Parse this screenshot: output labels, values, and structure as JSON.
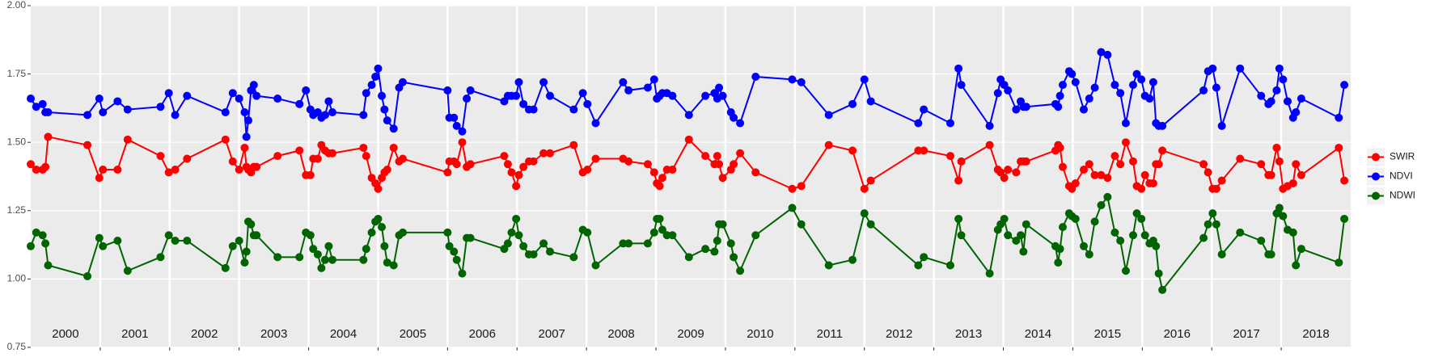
{
  "chart_data": {
    "type": "line",
    "x": [
      2000.0,
      2000.079,
      2000.171,
      2000.211,
      2000.25,
      2000.816,
      2000.987,
      2001.039,
      2001.25,
      2001.395,
      2001.868,
      2001.987,
      2002.079,
      2002.25,
      2002.803,
      2002.908,
      2003.0,
      2003.079,
      2003.105,
      2003.132,
      2003.171,
      2003.211,
      2003.25,
      2003.553,
      2003.868,
      2003.961,
      2004.026,
      2004.066,
      2004.132,
      2004.184,
      2004.237,
      2004.289,
      2004.342,
      2004.789,
      2004.829,
      2004.908,
      2004.961,
      2005.0,
      2005.053,
      2005.092,
      2005.132,
      2005.224,
      2005.303,
      2005.355,
      2006.0,
      2006.026,
      2006.092,
      2006.132,
      2006.211,
      2006.276,
      2006.329,
      2006.816,
      2006.868,
      2006.921,
      2006.987,
      2007.026,
      2007.092,
      2007.171,
      2007.237,
      2007.382,
      2007.474,
      2007.816,
      2007.947,
      2008.013,
      2008.132,
      2008.526,
      2008.605,
      2008.882,
      2008.974,
      2009.013,
      2009.053,
      2009.092,
      2009.158,
      2009.237,
      2009.474,
      2009.711,
      2009.842,
      2009.882,
      2009.908,
      2009.961,
      2010.079,
      2010.118,
      2010.211,
      2010.434,
      2010.961,
      2011.092,
      2011.487,
      2011.829,
      2012.0,
      2012.092,
      2012.776,
      2012.855,
      2013.237,
      2013.355,
      2013.395,
      2013.803,
      2013.921,
      2013.961,
      2014.013,
      2014.066,
      2014.184,
      2014.25,
      2014.289,
      2014.329,
      2014.75,
      2014.789,
      2014.816,
      2014.855,
      2014.947,
      2014.987,
      2015.039,
      2015.158,
      2015.237,
      2015.316,
      2015.408,
      2015.5,
      2015.605,
      2015.684,
      2015.763,
      2015.868,
      2015.921,
      2015.987,
      2016.039,
      2016.105,
      2016.158,
      2016.197,
      2016.237,
      2016.289,
      2016.882,
      2016.947,
      2017.013,
      2017.066,
      2017.145,
      2017.408,
      2017.711,
      2017.816,
      2017.855,
      2017.934,
      2017.974,
      2018.026,
      2018.092,
      2018.171,
      2018.211,
      2018.289,
      2018.829,
      2018.908
    ],
    "series": [
      {
        "name": "SWIR",
        "color": "#ff0000",
        "values": [
          1.42,
          1.4,
          1.4,
          1.41,
          1.52,
          1.49,
          1.37,
          1.4,
          1.4,
          1.51,
          1.45,
          1.39,
          1.4,
          1.44,
          1.51,
          1.43,
          1.4,
          1.48,
          1.41,
          1.4,
          1.39,
          1.41,
          1.41,
          1.45,
          1.47,
          1.38,
          1.38,
          1.44,
          1.44,
          1.49,
          1.47,
          1.46,
          1.46,
          1.48,
          1.45,
          1.37,
          1.35,
          1.33,
          1.37,
          1.39,
          1.4,
          1.48,
          1.43,
          1.44,
          1.39,
          1.43,
          1.43,
          1.42,
          1.5,
          1.41,
          1.42,
          1.45,
          1.42,
          1.39,
          1.34,
          1.38,
          1.41,
          1.43,
          1.43,
          1.46,
          1.46,
          1.49,
          1.39,
          1.4,
          1.44,
          1.44,
          1.43,
          1.42,
          1.39,
          1.35,
          1.34,
          1.37,
          1.4,
          1.4,
          1.51,
          1.45,
          1.42,
          1.45,
          1.42,
          1.37,
          1.4,
          1.42,
          1.46,
          1.39,
          1.33,
          1.34,
          1.49,
          1.47,
          1.33,
          1.36,
          1.47,
          1.47,
          1.45,
          1.36,
          1.43,
          1.49,
          1.4,
          1.39,
          1.37,
          1.4,
          1.39,
          1.43,
          1.43,
          1.43,
          1.47,
          1.49,
          1.48,
          1.41,
          1.34,
          1.33,
          1.35,
          1.4,
          1.42,
          1.38,
          1.38,
          1.37,
          1.45,
          1.42,
          1.5,
          1.43,
          1.34,
          1.33,
          1.38,
          1.35,
          1.35,
          1.42,
          1.42,
          1.47,
          1.42,
          1.39,
          1.33,
          1.33,
          1.36,
          1.44,
          1.42,
          1.38,
          1.38,
          1.48,
          1.43,
          1.33,
          1.34,
          1.35,
          1.42,
          1.38,
          1.48,
          1.36
        ]
      },
      {
        "name": "NDVI",
        "color": "#0000ff",
        "values": [
          1.66,
          1.63,
          1.64,
          1.61,
          1.61,
          1.6,
          1.66,
          1.61,
          1.65,
          1.62,
          1.63,
          1.68,
          1.6,
          1.67,
          1.61,
          1.68,
          1.66,
          1.61,
          1.52,
          1.58,
          1.69,
          1.71,
          1.67,
          1.66,
          1.64,
          1.69,
          1.62,
          1.6,
          1.61,
          1.59,
          1.6,
          1.65,
          1.61,
          1.6,
          1.68,
          1.71,
          1.74,
          1.77,
          1.67,
          1.62,
          1.58,
          1.55,
          1.7,
          1.72,
          1.69,
          1.59,
          1.59,
          1.56,
          1.54,
          1.66,
          1.69,
          1.65,
          1.67,
          1.67,
          1.67,
          1.72,
          1.64,
          1.62,
          1.62,
          1.72,
          1.67,
          1.62,
          1.68,
          1.64,
          1.57,
          1.72,
          1.69,
          1.7,
          1.73,
          1.66,
          1.67,
          1.68,
          1.68,
          1.67,
          1.6,
          1.67,
          1.68,
          1.66,
          1.7,
          1.67,
          1.61,
          1.59,
          1.57,
          1.74,
          1.73,
          1.72,
          1.6,
          1.64,
          1.73,
          1.65,
          1.57,
          1.62,
          1.57,
          1.77,
          1.71,
          1.56,
          1.68,
          1.73,
          1.71,
          1.69,
          1.62,
          1.65,
          1.63,
          1.63,
          1.64,
          1.63,
          1.67,
          1.71,
          1.76,
          1.75,
          1.72,
          1.62,
          1.66,
          1.7,
          1.83,
          1.82,
          1.71,
          1.68,
          1.57,
          1.71,
          1.75,
          1.73,
          1.67,
          1.66,
          1.72,
          1.57,
          1.56,
          1.56,
          1.69,
          1.76,
          1.77,
          1.7,
          1.56,
          1.77,
          1.67,
          1.64,
          1.65,
          1.69,
          1.77,
          1.73,
          1.65,
          1.59,
          1.61,
          1.66,
          1.59,
          1.71
        ]
      },
      {
        "name": "NDWI",
        "color": "#006400",
        "values": [
          1.12,
          1.17,
          1.16,
          1.13,
          1.05,
          1.01,
          1.15,
          1.12,
          1.14,
          1.03,
          1.08,
          1.16,
          1.14,
          1.14,
          1.04,
          1.12,
          1.14,
          1.06,
          1.1,
          1.21,
          1.2,
          1.16,
          1.16,
          1.08,
          1.08,
          1.17,
          1.16,
          1.11,
          1.09,
          1.04,
          1.07,
          1.12,
          1.07,
          1.07,
          1.11,
          1.17,
          1.21,
          1.22,
          1.19,
          1.12,
          1.06,
          1.05,
          1.16,
          1.17,
          1.17,
          1.12,
          1.1,
          1.07,
          1.02,
          1.15,
          1.15,
          1.11,
          1.13,
          1.17,
          1.22,
          1.16,
          1.12,
          1.09,
          1.09,
          1.13,
          1.1,
          1.08,
          1.18,
          1.17,
          1.05,
          1.13,
          1.13,
          1.13,
          1.17,
          1.22,
          1.22,
          1.18,
          1.16,
          1.16,
          1.08,
          1.11,
          1.1,
          1.14,
          1.2,
          1.2,
          1.13,
          1.08,
          1.03,
          1.16,
          1.26,
          1.2,
          1.05,
          1.07,
          1.24,
          1.2,
          1.05,
          1.08,
          1.05,
          1.22,
          1.16,
          1.02,
          1.18,
          1.2,
          1.22,
          1.16,
          1.14,
          1.16,
          1.1,
          1.2,
          1.12,
          1.06,
          1.11,
          1.19,
          1.24,
          1.23,
          1.22,
          1.12,
          1.09,
          1.21,
          1.27,
          1.3,
          1.17,
          1.14,
          1.03,
          1.16,
          1.24,
          1.22,
          1.16,
          1.13,
          1.14,
          1.12,
          1.02,
          0.96,
          1.15,
          1.2,
          1.24,
          1.2,
          1.09,
          1.17,
          1.14,
          1.09,
          1.09,
          1.24,
          1.26,
          1.23,
          1.18,
          1.17,
          1.05,
          1.11,
          1.06,
          1.22
        ]
      }
    ],
    "xlim": [
      2000,
      2019
    ],
    "xticks": [
      2001,
      2002,
      2003,
      2004,
      2005,
      2006,
      2007,
      2008,
      2009,
      2010,
      2011,
      2012,
      2013,
      2014,
      2015,
      2016,
      2017,
      2018
    ],
    "year_labels": [
      "2000",
      "2001",
      "2002",
      "2003",
      "2004",
      "2005",
      "2006",
      "2007",
      "2008",
      "2009",
      "2010",
      "2011",
      "2012",
      "2013",
      "2014",
      "2015",
      "2016",
      "2017",
      "2018"
    ],
    "ylim": [
      0.75,
      2.0
    ],
    "yticks": [
      0.75,
      {
        "value": 1,
        "label": "1.00"
      },
      1.25,
      {
        "value": 1.5,
        "label": "1.50"
      },
      1.75,
      {
        "value": 2,
        "label": "2.00"
      }
    ],
    "grid": true,
    "legend": "right"
  }
}
